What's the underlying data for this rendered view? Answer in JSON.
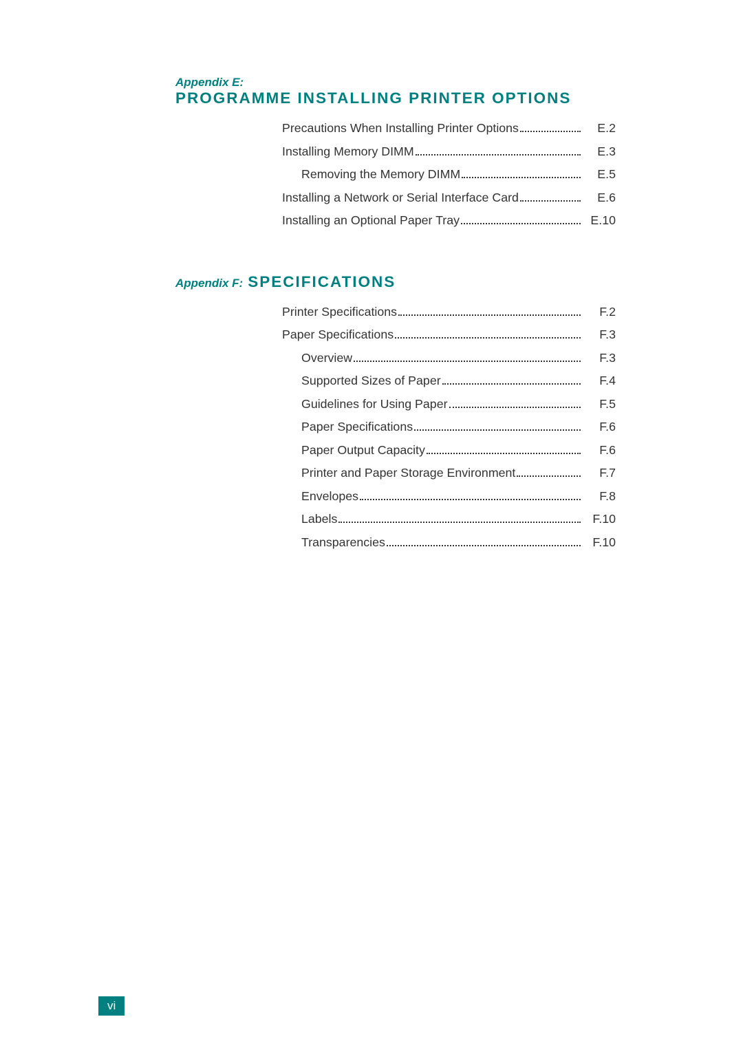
{
  "colors": {
    "teal": "#008080",
    "text": "#333333",
    "background": "#ffffff",
    "badge_bg": "#008080",
    "badge_text": "#ffffff"
  },
  "typography": {
    "body_font": "Verdana, Arial, sans-serif",
    "toc_fontsize": 17.8,
    "appendix_label_fontsize": 17,
    "appendix_title_fontsize": 22.5,
    "badge_fontsize": 17
  },
  "page_number": "vi",
  "appendixE": {
    "label": "Appendix E:",
    "title": "PROGRAMME INSTALLING PRINTER OPTIONS",
    "entries": [
      {
        "text": "Precautions When Installing Printer Options",
        "page": "E.2",
        "sub": false
      },
      {
        "text": "Installing Memory DIMM",
        "page": "E.3",
        "sub": false
      },
      {
        "text": "Removing the Memory DIMM",
        "page": "E.5",
        "sub": true
      },
      {
        "text": "Installing a Network or Serial Interface Card",
        "page": "E.6",
        "sub": false
      },
      {
        "text": "Installing an Optional Paper Tray",
        "page": "E.10",
        "sub": false
      }
    ]
  },
  "appendixF": {
    "label": "Appendix F:",
    "title": "SPECIFICATIONS",
    "entries": [
      {
        "text": "Printer Specifications",
        "page": "F.2",
        "sub": false
      },
      {
        "text": "Paper Specifications",
        "page": "F.3",
        "sub": false
      },
      {
        "text": "Overview",
        "page": "F.3",
        "sub": true
      },
      {
        "text": "Supported Sizes of Paper",
        "page": "F.4",
        "sub": true
      },
      {
        "text": "Guidelines for Using Paper",
        "page": "F.5",
        "sub": true
      },
      {
        "text": "Paper Specifications",
        "page": "F.6",
        "sub": true
      },
      {
        "text": "Paper Output Capacity",
        "page": "F.6",
        "sub": true
      },
      {
        "text": "Printer and Paper Storage Environment",
        "page": "F.7",
        "sub": true
      },
      {
        "text": "Envelopes",
        "page": "F.8",
        "sub": true
      },
      {
        "text": "Labels",
        "page": "F.10",
        "sub": true
      },
      {
        "text": "Transparencies",
        "page": "F.10",
        "sub": true
      }
    ]
  }
}
